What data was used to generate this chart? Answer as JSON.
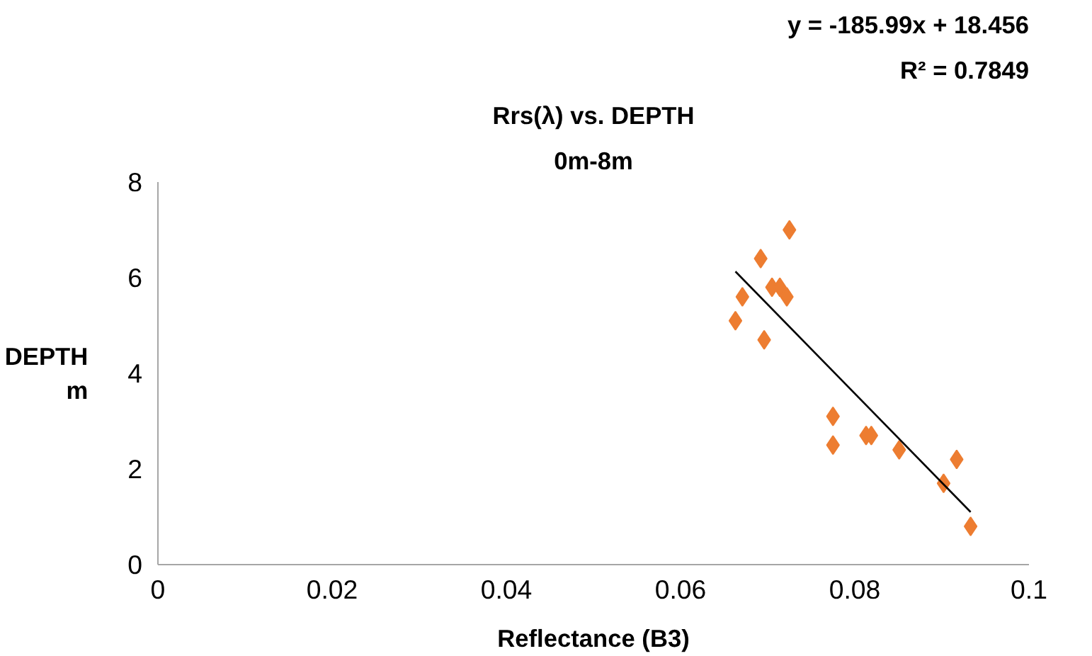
{
  "chart_data": {
    "type": "scatter",
    "title": "Rrs(λ) vs. DEPTH",
    "subtitle": "0m-8m",
    "xlabel": "Reflectance (B3)",
    "ylabel": "DEPTH\nm",
    "annotations": [
      "y = -185.99x + 18.456",
      "R² = 0.7849"
    ],
    "xlim": [
      0,
      0.1
    ],
    "xticks": [
      0,
      0.02,
      0.04,
      0.06,
      0.08,
      0.1
    ],
    "ylim": [
      0,
      8
    ],
    "yticks": [
      0,
      2,
      4,
      6,
      8
    ],
    "grid": false,
    "series": [
      {
        "marker": "diamond",
        "color": "#ed7d31",
        "x": [
          0.0725,
          0.0692,
          0.0671,
          0.0705,
          0.0714,
          0.0722,
          0.0663,
          0.0696,
          0.0775,
          0.0775,
          0.0813,
          0.0819,
          0.0851,
          0.0917,
          0.0902,
          0.0933
        ],
        "values": [
          7.0,
          6.4,
          5.6,
          5.8,
          5.8,
          5.6,
          5.1,
          4.7,
          3.1,
          2.5,
          2.7,
          2.7,
          2.4,
          2.2,
          1.7,
          0.8
        ]
      },
      {
        "type": "line",
        "marker": "none",
        "line_style": "solid",
        "color": "#000000",
        "x": [
          0.0663,
          0.0933
        ],
        "values": [
          6.13,
          1.1
        ]
      }
    ]
  }
}
